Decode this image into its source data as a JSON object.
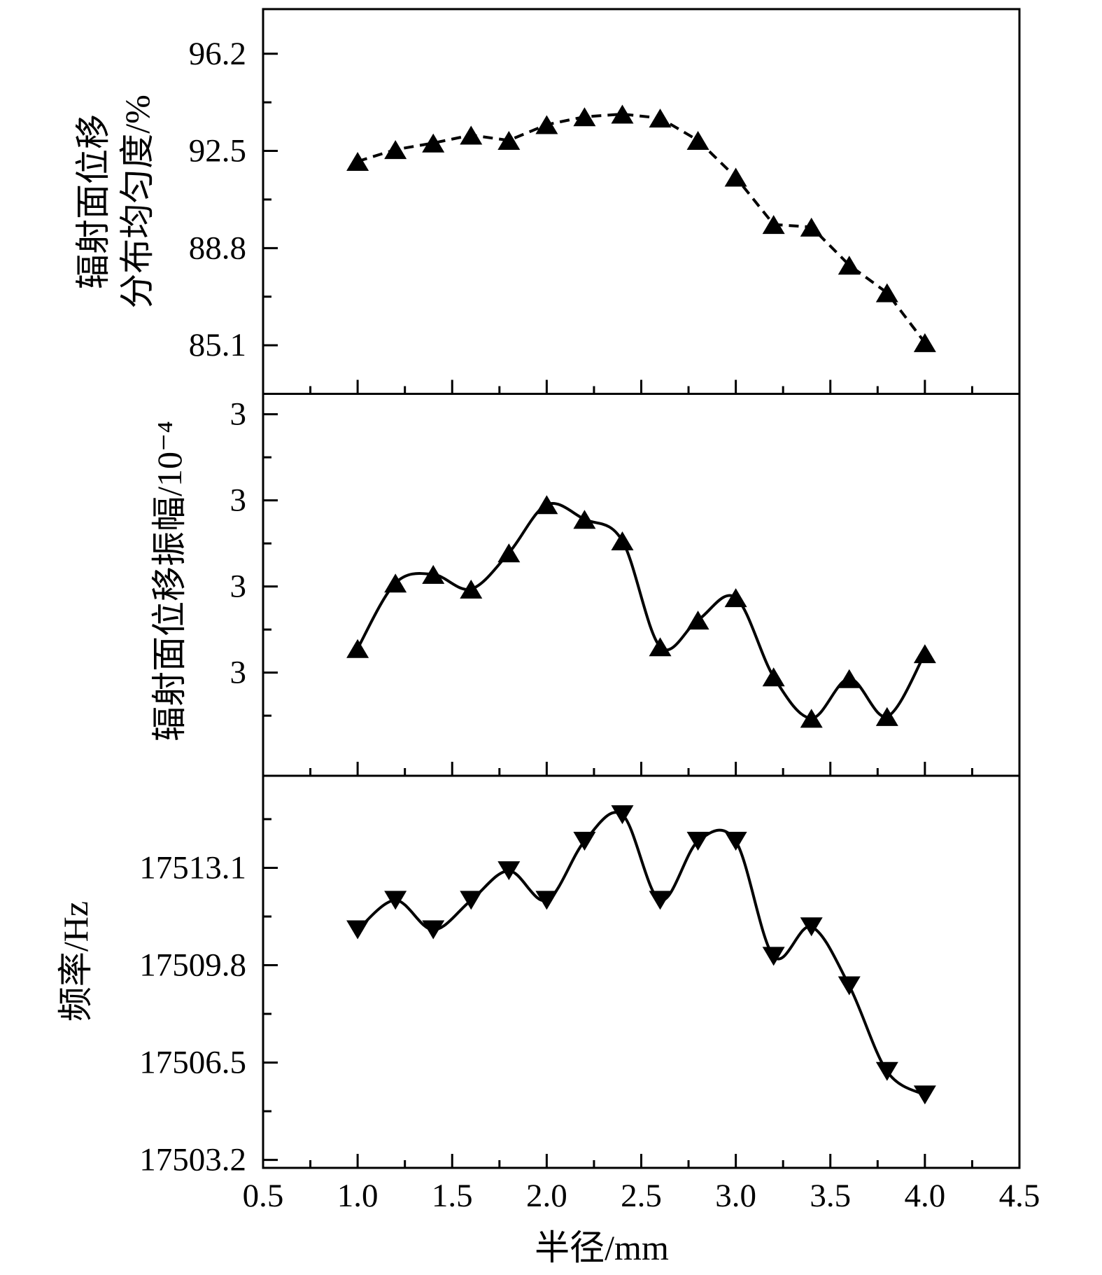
{
  "figure": {
    "background_color": "#ffffff",
    "foreground_color": "#000000",
    "x_axis": {
      "title": "半径/mm",
      "range": [
        0.5,
        4.5
      ],
      "tick_values": [
        0.5,
        1.0,
        1.5,
        2.0,
        2.5,
        3.0,
        3.5,
        4.0,
        4.5
      ],
      "tick_labels": [
        "0.5",
        "1.0",
        "1.5",
        "2.0",
        "2.5",
        "3.0",
        "3.5",
        "4.0",
        "4.5"
      ],
      "minor_tick_values": [
        0.75,
        1.25,
        1.75,
        2.25,
        2.75,
        3.25,
        3.75,
        4.25
      ]
    },
    "chart_data": [
      {
        "panel": "top",
        "type": "line",
        "series_name": "radiation-surface-displacement-uniformity",
        "y_title_lines": [
          "辐射面位移",
          "分布均匀度/%"
        ],
        "marker": "triangle-up",
        "line_style": "dashed",
        "grid": false,
        "y_range": [
          83.25,
          97.9
        ],
        "y_tick_values": [
          96.2,
          92.5,
          88.8,
          85.1
        ],
        "y_tick_labels": [
          "96.2",
          "92.5",
          "88.8",
          "85.1"
        ],
        "y_minor_tick_values": [
          94.35,
          90.65,
          86.95
        ],
        "x": [
          1.0,
          1.2,
          1.4,
          1.6,
          1.8,
          2.0,
          2.2,
          2.4,
          2.6,
          2.8,
          3.0,
          3.2,
          3.4,
          3.6,
          3.8,
          4.0
        ],
        "y": [
          92.1,
          92.55,
          92.8,
          93.1,
          92.9,
          93.5,
          93.8,
          93.9,
          93.75,
          92.9,
          91.5,
          89.7,
          89.6,
          88.15,
          87.1,
          85.2
        ]
      },
      {
        "panel": "middle",
        "type": "line",
        "series_name": "radiation-surface-displacement-amplitude",
        "y_title_lines": [
          "辐射面位移振幅/10⁻⁴"
        ],
        "marker": "triangle-up",
        "line_style": "solid",
        "smooth": true,
        "grid": false,
        "y_note": "all four major tick labels are printed as 3; data below is in tick-spacing units (0 = lowest labeled tick, 3 = highest labeled tick)",
        "y_range": [
          -1.198,
          3.237
        ],
        "y_tick_values": [
          3,
          2,
          1,
          0
        ],
        "y_tick_labels": [
          "3",
          "3",
          "3",
          "3"
        ],
        "y_minor_tick_values": [
          2.5,
          1.5,
          0.5,
          -0.5
        ],
        "x": [
          1.0,
          1.2,
          1.4,
          1.6,
          1.8,
          2.0,
          2.2,
          2.4,
          2.6,
          2.8,
          3.0,
          3.2,
          3.4,
          3.6,
          3.8,
          4.0
        ],
        "y": [
          0.28,
          1.04,
          1.14,
          0.97,
          1.39,
          1.95,
          1.78,
          1.53,
          0.3,
          0.61,
          0.87,
          -0.05,
          -0.53,
          -0.07,
          -0.51,
          0.22
        ]
      },
      {
        "panel": "bottom",
        "type": "line",
        "series_name": "frequency",
        "y_title_lines": [
          "频率/Hz"
        ],
        "marker": "triangle-down",
        "line_style": "solid",
        "smooth": true,
        "grid": false,
        "y_range": [
          17502.93,
          17516.22
        ],
        "y_tick_values": [
          17513.1,
          17509.8,
          17506.5,
          17503.2
        ],
        "y_tick_labels": [
          "17513.1",
          "17509.8",
          "17506.5",
          "17503.2"
        ],
        "y_minor_tick_values": [
          17514.75,
          17511.45,
          17508.15,
          17504.85
        ],
        "x": [
          1.0,
          1.2,
          1.4,
          1.6,
          1.8,
          2.0,
          2.2,
          2.4,
          2.6,
          2.8,
          3.0,
          3.2,
          3.4,
          3.6,
          3.8,
          4.0
        ],
        "y": [
          17511.0,
          17512.0,
          17511.0,
          17512.0,
          17513.0,
          17512.0,
          17514.0,
          17514.9,
          17512.0,
          17514.0,
          17514.0,
          17510.1,
          17511.1,
          17509.1,
          17506.2,
          17505.4
        ]
      }
    ]
  }
}
